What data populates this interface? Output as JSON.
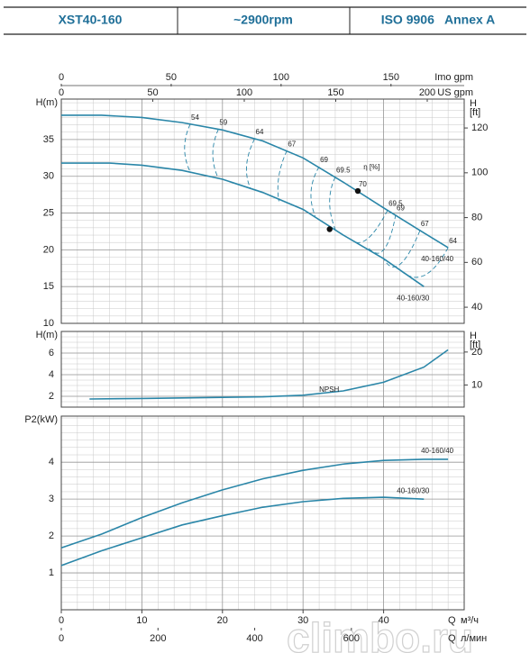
{
  "header": {
    "cells": [
      "XST40-160",
      "~2900rpm",
      "ISO 9906   Annex A"
    ]
  },
  "watermark": "climbo.ru",
  "chart_data": [
    {
      "type": "line",
      "y_label": "H(m)",
      "y2_label": [
        "H",
        "[ft]"
      ],
      "xlim": [
        0,
        50
      ],
      "ylim": [
        10,
        40.5
      ],
      "yticks": [
        10,
        15,
        20,
        25,
        30,
        35
      ],
      "y2lim": [
        32.8,
        132.9
      ],
      "y2ticks": [
        40,
        60,
        80,
        100,
        120
      ],
      "grid": true,
      "color": "#2a86a8",
      "x2_axes": [
        {
          "label": "Imo gpm",
          "lim": [
            0,
            183.3
          ],
          "ticks": [
            0,
            50,
            100,
            150
          ]
        },
        {
          "label": "US gpm",
          "lim": [
            0,
            220.2
          ],
          "ticks": [
            0,
            50,
            100,
            150,
            200
          ]
        }
      ],
      "series": [
        {
          "name": "40-160/40",
          "x": [
            0,
            5,
            10,
            15,
            20,
            25,
            30,
            35,
            40,
            45,
            48
          ],
          "values": [
            38.3,
            38.3,
            38.0,
            37.3,
            36.3,
            34.8,
            32.5,
            29.2,
            25.7,
            22.3,
            20.3
          ]
        },
        {
          "name": "40-160/30",
          "x": [
            0,
            6,
            10,
            15,
            20,
            25,
            30,
            35,
            40,
            45
          ],
          "values": [
            31.8,
            31.8,
            31.5,
            30.8,
            29.6,
            27.8,
            25.5,
            22.0,
            18.8,
            15.0
          ]
        }
      ],
      "markers": [
        {
          "q": 36.8,
          "h": 28.0
        },
        {
          "q": 33.3,
          "h": 22.8
        }
      ],
      "efficiency_label": {
        "text": "η [%]",
        "q": 37.5,
        "h": 31.2
      },
      "contours": [
        {
          "label": "54",
          "q": [
            16,
            15.3,
            16
          ],
          "h": [
            37.1,
            33.8,
            30.6
          ]
        },
        {
          "label": "59",
          "q": [
            19.5,
            18.8,
            19.5
          ],
          "h": [
            36.4,
            33.0,
            29.7
          ]
        },
        {
          "label": "64",
          "q": [
            24,
            23,
            23.5
          ],
          "h": [
            35.1,
            31.5,
            28.3
          ]
        },
        {
          "label": "67",
          "q": [
            28,
            27,
            27
          ],
          "h": [
            33.5,
            30.0,
            26.6
          ]
        },
        {
          "label": "69",
          "q": [
            32,
            31,
            31.5
          ],
          "h": [
            31.3,
            28.0,
            24.6
          ]
        },
        {
          "label": "69.5",
          "q": [
            34,
            33.3,
            34
          ],
          "h": [
            29.9,
            26.5,
            22.8
          ]
        },
        {
          "label": "70",
          "q": [
            36.8
          ],
          "h": [
            28.0
          ]
        },
        {
          "label": "69.5",
          "q": [
            40.5,
            38,
            36
          ],
          "h": [
            25.4,
            21.5,
            21.4
          ]
        },
        {
          "label": "69",
          "q": [
            41.5,
            40,
            38
          ],
          "h": [
            24.8,
            20.0,
            20.4
          ]
        },
        {
          "label": "67",
          "q": [
            44.5,
            42,
            40
          ],
          "h": [
            22.6,
            18.0,
            18.8
          ]
        },
        {
          "label": "64",
          "q": [
            48,
            45,
            42
          ],
          "h": [
            20.3,
            16.5,
            17.3
          ]
        }
      ]
    },
    {
      "type": "line",
      "y_label": "H(m)",
      "y2_label": [
        "H",
        "[ft]"
      ],
      "xlim": [
        0,
        50
      ],
      "ylim": [
        1,
        8
      ],
      "yticks": [
        2,
        4,
        6
      ],
      "y2lim": [
        3.28,
        26.25
      ],
      "y2ticks": [
        10,
        20
      ],
      "grid": true,
      "color": "#2a86a8",
      "series": [
        {
          "name": "NPSH",
          "x": [
            3.5,
            10,
            20,
            25,
            30,
            35,
            40,
            45,
            48
          ],
          "values": [
            1.75,
            1.8,
            1.9,
            1.95,
            2.1,
            2.5,
            3.3,
            4.7,
            6.3
          ]
        }
      ],
      "annotation": {
        "text": "NPSH",
        "q": 32,
        "h": 2.6
      }
    },
    {
      "type": "line",
      "y_label": "P2(kW)",
      "xlim": [
        0,
        50
      ],
      "ylim": [
        0,
        5.25
      ],
      "yticks": [
        1,
        2,
        3,
        4
      ],
      "grid": true,
      "color": "#2a86a8",
      "xticks": [
        0,
        10,
        20,
        30,
        40
      ],
      "x_label": [
        "Q",
        "м³/ч"
      ],
      "x2_axes": [
        {
          "label": [
            "Q",
            "л/мин"
          ],
          "lim": [
            0,
            833.3
          ],
          "ticks": [
            0,
            200,
            400,
            600
          ]
        }
      ],
      "series": [
        {
          "name": "40-160/40",
          "x": [
            0,
            5,
            10,
            15,
            20,
            25,
            30,
            35,
            40,
            45,
            48
          ],
          "values": [
            1.68,
            2.05,
            2.5,
            2.9,
            3.25,
            3.55,
            3.78,
            3.95,
            4.05,
            4.08,
            4.08
          ]
        },
        {
          "name": "40-160/30",
          "x": [
            0,
            5,
            10,
            15,
            20,
            25,
            30,
            35,
            40,
            45
          ],
          "values": [
            1.2,
            1.6,
            1.95,
            2.3,
            2.55,
            2.78,
            2.93,
            3.02,
            3.05,
            3.0
          ]
        }
      ]
    }
  ]
}
